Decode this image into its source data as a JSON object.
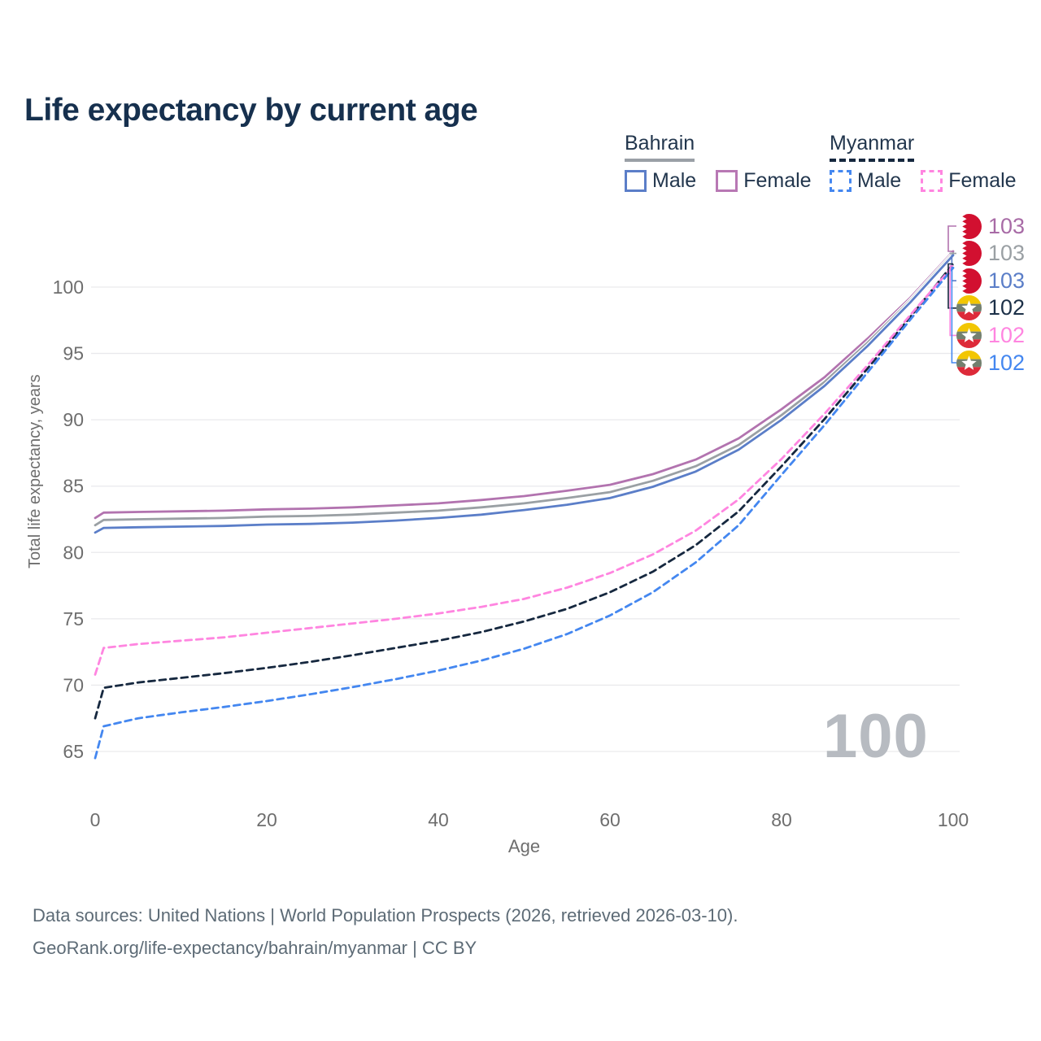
{
  "title": "Life expectancy by current age",
  "watermark": "100",
  "legend": {
    "groups": [
      {
        "country": "Bahrain",
        "underline": {
          "style": "solid",
          "color": "#9aa0a6"
        },
        "items": [
          {
            "label": "Male",
            "color": "#5b7ec8",
            "dashed": false
          },
          {
            "label": "Female",
            "color": "#b878b4",
            "dashed": false
          }
        ]
      },
      {
        "country": "Myanmar",
        "underline": {
          "style": "dashed",
          "color": "#16283f"
        },
        "items": [
          {
            "label": "Male",
            "color": "#4487f0",
            "dashed": true
          },
          {
            "label": "Female",
            "color": "#ff85e0",
            "dashed": true
          }
        ]
      }
    ]
  },
  "chart_data": {
    "type": "line",
    "title": "Life expectancy by current age",
    "xlabel": "Age",
    "ylabel": "Total life expectancy, years",
    "x_ticks": [
      0,
      20,
      40,
      60,
      80,
      100
    ],
    "y_ticks": [
      65,
      70,
      75,
      80,
      85,
      90,
      95,
      100
    ],
    "xlim": [
      0,
      100
    ],
    "ylim": [
      63.5,
      104
    ],
    "grid": "horizontal",
    "legend_position": "top-right",
    "x": [
      0,
      1,
      5,
      10,
      15,
      20,
      25,
      30,
      35,
      40,
      45,
      50,
      55,
      60,
      65,
      70,
      75,
      80,
      85,
      90,
      95,
      100
    ],
    "series": [
      {
        "name": "Bahrain Female",
        "country": "Bahrain",
        "sex": "Female",
        "color": "#b273af",
        "dashed": false,
        "end_label": "103",
        "values": [
          82.6,
          83.0,
          83.05,
          83.1,
          83.15,
          83.25,
          83.3,
          83.4,
          83.55,
          83.7,
          83.95,
          84.25,
          84.65,
          85.1,
          85.9,
          87.0,
          88.6,
          90.8,
          93.2,
          96.1,
          99.2,
          102.7
        ]
      },
      {
        "name": "Bahrain Both sexes",
        "country": "Bahrain",
        "sex": "Both",
        "color": "#9aa0a4",
        "dashed": false,
        "end_label": "103",
        "values": [
          82.05,
          82.45,
          82.5,
          82.55,
          82.6,
          82.7,
          82.75,
          82.85,
          83.0,
          83.15,
          83.4,
          83.7,
          84.1,
          84.55,
          85.4,
          86.5,
          88.1,
          90.35,
          92.85,
          95.8,
          99.0,
          102.55
        ]
      },
      {
        "name": "Bahrain Male",
        "country": "Bahrain",
        "sex": "Male",
        "color": "#5b7ec8",
        "dashed": false,
        "end_label": "103",
        "values": [
          81.5,
          81.85,
          81.9,
          81.95,
          82.0,
          82.1,
          82.15,
          82.25,
          82.4,
          82.6,
          82.85,
          83.2,
          83.6,
          84.1,
          84.95,
          86.1,
          87.75,
          90.0,
          92.55,
          95.55,
          98.85,
          102.4
        ]
      },
      {
        "name": "Myanmar Both sexes",
        "country": "Myanmar",
        "sex": "Both",
        "color": "#16283f",
        "dashed": true,
        "end_label": "102",
        "values": [
          67.5,
          69.8,
          70.2,
          70.55,
          70.9,
          71.3,
          71.75,
          72.25,
          72.8,
          73.35,
          74.0,
          74.8,
          75.75,
          77.0,
          78.55,
          80.55,
          83.1,
          86.5,
          90.05,
          93.85,
          97.75,
          101.75
        ]
      },
      {
        "name": "Myanmar Female",
        "country": "Myanmar",
        "sex": "Female",
        "color": "#ff85e0",
        "dashed": true,
        "end_label": "102",
        "values": [
          70.8,
          72.8,
          73.1,
          73.35,
          73.6,
          73.95,
          74.3,
          74.65,
          75.0,
          75.4,
          75.9,
          76.5,
          77.35,
          78.45,
          79.85,
          81.65,
          84.0,
          87.05,
          90.45,
          94.1,
          97.9,
          101.6
        ]
      },
      {
        "name": "Myanmar Male",
        "country": "Myanmar",
        "sex": "Male",
        "color": "#4487f0",
        "dashed": true,
        "end_label": "102",
        "values": [
          64.5,
          66.9,
          67.5,
          67.95,
          68.35,
          68.8,
          69.3,
          69.85,
          70.45,
          71.1,
          71.85,
          72.75,
          73.85,
          75.25,
          77.0,
          79.25,
          82.05,
          85.85,
          89.6,
          93.55,
          97.55,
          101.45
        ]
      }
    ]
  },
  "right_labels": [
    {
      "flag": "bahrain",
      "value": "103",
      "color": "#a86ba6"
    },
    {
      "flag": "bahrain",
      "value": "103",
      "color": "#9aa0a4"
    },
    {
      "flag": "bahrain",
      "value": "103",
      "color": "#5b7ec8"
    },
    {
      "flag": "myanmar",
      "value": "102",
      "color": "#1c3048"
    },
    {
      "flag": "myanmar",
      "value": "102",
      "color": "#ff85e0"
    },
    {
      "flag": "myanmar",
      "value": "102",
      "color": "#4487f0"
    }
  ],
  "flag_colors": {
    "bahrain": {
      "white": "#ffffff",
      "red": "#d21030"
    },
    "myanmar": {
      "yellow": "#f2c602",
      "green": "#73806f",
      "red": "#dd2a39",
      "star": "#ffffff"
    }
  },
  "style_colors": {
    "gridline": "#e9e9ec",
    "tick_text": "#6e6e6e",
    "title_text": "#16304e"
  },
  "footer": {
    "line1": "Data sources: United Nations | World Population Prospects (2026, retrieved 2026-03-10).",
    "line2": "GeoRank.org/life-expectancy/bahrain/myanmar | CC BY"
  }
}
